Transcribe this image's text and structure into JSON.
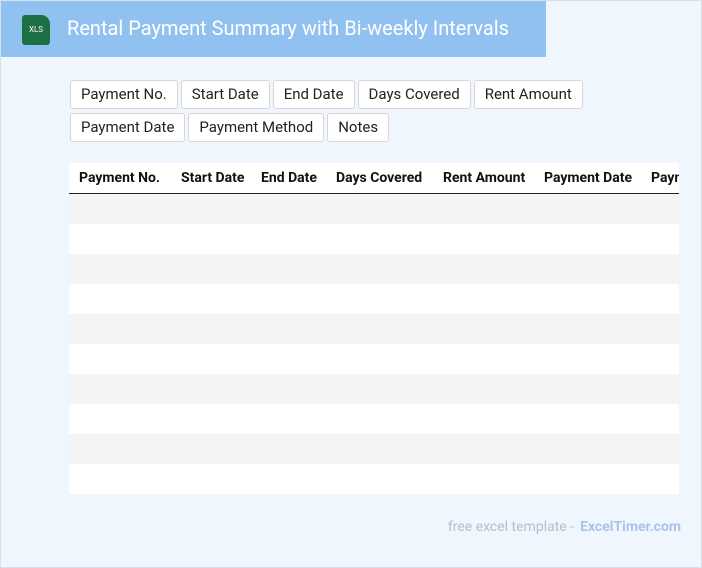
{
  "header": {
    "icon": "XLS",
    "title": "Rental Payment Summary with Bi-weekly Intervals"
  },
  "fields": [
    "Payment No.",
    "Start Date",
    "End Date",
    "Days Covered",
    "Rent Amount",
    "Payment Date",
    "Payment Method",
    "Notes"
  ],
  "table": {
    "headers": [
      "Payment No.",
      "Start Date",
      "End Date",
      "Days Covered",
      "Rent Amount",
      "Payment Date",
      "Payment Method"
    ]
  },
  "footer": {
    "text": "free excel template -",
    "link": "ExcelTimer.com"
  }
}
